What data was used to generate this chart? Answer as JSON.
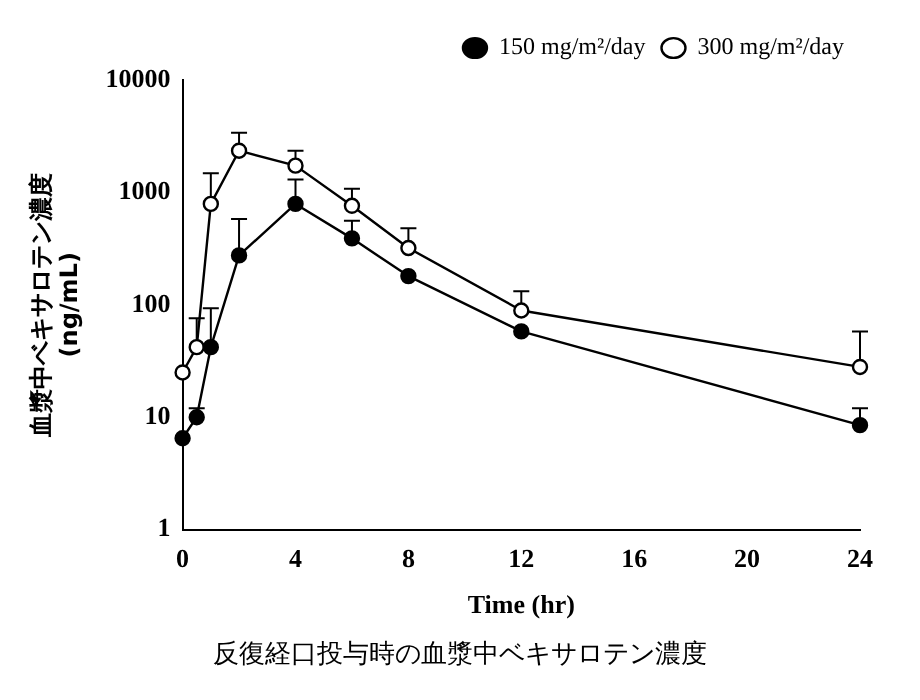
{
  "chart_data": {
    "type": "line",
    "xlabel": "Time (hr)",
    "ylabel": "血漿中ベキサロテン濃度\n(ng/mL)",
    "annotations": [
      "反復経口投与時の血漿中ベキサロテン濃度"
    ],
    "x": [
      0,
      0.5,
      1,
      2,
      4,
      6,
      8,
      12,
      24
    ],
    "series": [
      {
        "name": "150 mg/m²/day",
        "color": "#000000",
        "values": [
          6.5,
          10,
          42,
          275,
          790,
          390,
          180,
          58,
          8.5
        ],
        "errors": [
          null,
          [
            10,
            12
          ],
          [
            42,
            93
          ],
          [
            275,
            580
          ],
          [
            790,
            1300
          ],
          [
            390,
            560
          ],
          null,
          null,
          [
            8.5,
            12
          ]
        ]
      },
      {
        "name": "300 mg/m²/day",
        "color": "#ffffff",
        "values": [
          25,
          42,
          790,
          2350,
          1730,
          760,
          320,
          89,
          28
        ],
        "errors": [
          null,
          [
            42,
            76
          ],
          [
            790,
            1480
          ],
          [
            2350,
            3400
          ],
          [
            1730,
            2350
          ],
          [
            760,
            1080
          ],
          [
            320,
            480
          ],
          [
            89,
            132
          ],
          [
            28,
            58
          ]
        ]
      }
    ],
    "log": "y",
    "ylim": [
      1,
      10000
    ],
    "yticks": [
      1,
      10,
      100,
      1000,
      10000
    ],
    "xlim": [
      0,
      24
    ],
    "xticks": [
      0,
      4,
      8,
      12,
      16,
      20,
      24
    ],
    "grid": false,
    "legend": "top right",
    "marker": "circle",
    "line_style": "solid"
  }
}
